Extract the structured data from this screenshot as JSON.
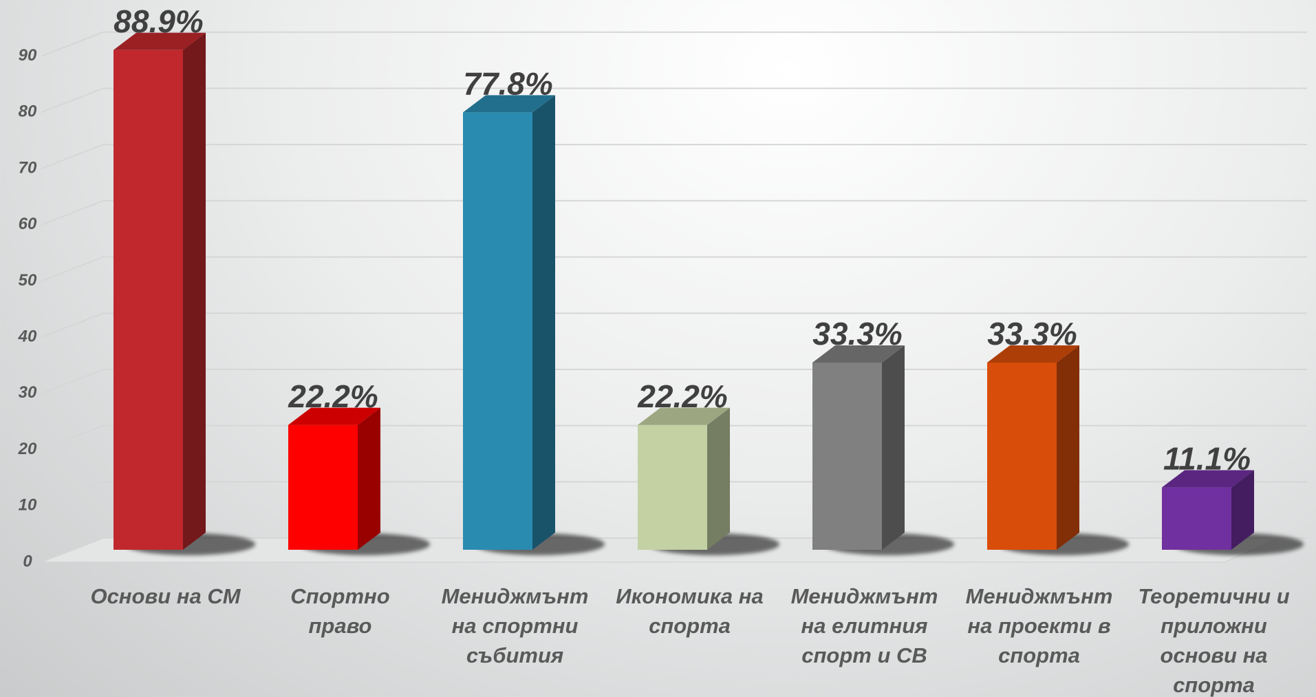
{
  "chart_data": {
    "type": "bar3d",
    "categories": [
      "Основи на СМ",
      "Спортно право",
      "Мениджмънт на спортни събития",
      "Икономика на спорта",
      "Мениджмънт на елитния спорт и СВ",
      "Мениджмънт на проекти в спорта",
      "Теоретични и приложни основи на спорта"
    ],
    "values": [
      88.9,
      22.2,
      77.8,
      22.2,
      33.3,
      33.3,
      11.1
    ],
    "value_labels": [
      "88.9%",
      "22.2%",
      "77.8%",
      "22.2%",
      "33.3%",
      "33.3%",
      "11.1%"
    ],
    "colors": [
      "#c0282d",
      "#ff0000",
      "#2a8bb0",
      "#c3d1a3",
      "#808080",
      "#d94d0a",
      "#7030a0"
    ],
    "ylim": [
      0,
      100
    ],
    "yticks": [
      0,
      10,
      20,
      30,
      40,
      50,
      60,
      70,
      80,
      90
    ],
    "grid": true
  }
}
